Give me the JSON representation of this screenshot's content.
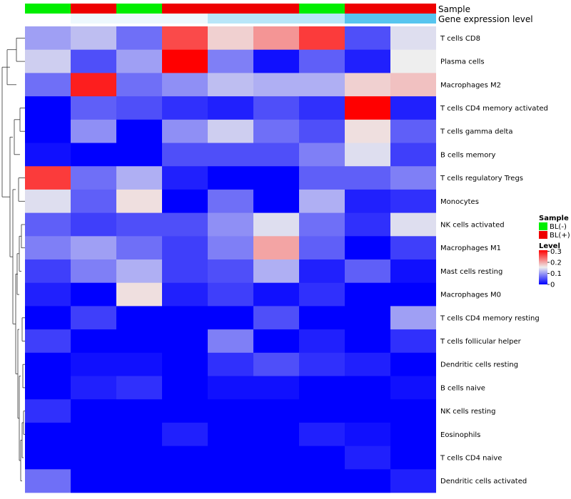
{
  "chart_data": {
    "type": "heatmap",
    "row_labels": [
      "T cells CD8",
      "Plasma cells",
      "Macrophages M2",
      "T cells CD4 memory activated",
      "T cells gamma delta",
      "B cells memory",
      "T cells regulatory  Tregs",
      "Monocytes",
      "NK cells activated",
      "Macrophages M1",
      "Mast cells resting",
      "Macrophages M0",
      "T cells CD4 memory resting",
      "T cells follicular helper",
      "Dendritic cells resting",
      "B cells naive",
      "NK cells resting",
      "Eosinophils",
      "T cells CD4 naive",
      "Dendritic cells activated"
    ],
    "column_count": 9,
    "values": [
      [
        0.1,
        0.12,
        0.07,
        0.26,
        0.17,
        0.21,
        0.27,
        0.05,
        0.14
      ],
      [
        0.13,
        0.05,
        0.1,
        0.31,
        0.08,
        0.01,
        0.06,
        0.02,
        0.15
      ],
      [
        0.07,
        0.29,
        0.07,
        0.09,
        0.12,
        0.11,
        0.11,
        0.17,
        0.18
      ],
      [
        0.0,
        0.06,
        0.05,
        0.03,
        0.02,
        0.05,
        0.03,
        0.31,
        0.02
      ],
      [
        0.0,
        0.09,
        0.0,
        0.09,
        0.13,
        0.07,
        0.05,
        0.16,
        0.06
      ],
      [
        0.01,
        0.0,
        0.0,
        0.05,
        0.05,
        0.05,
        0.08,
        0.14,
        0.04
      ],
      [
        0.27,
        0.07,
        0.11,
        0.02,
        0.0,
        0.0,
        0.06,
        0.06,
        0.08
      ],
      [
        0.14,
        0.06,
        0.16,
        0.0,
        0.07,
        0.0,
        0.11,
        0.02,
        0.03
      ],
      [
        0.06,
        0.04,
        0.05,
        0.05,
        0.09,
        0.14,
        0.07,
        0.03,
        0.14
      ],
      [
        0.08,
        0.1,
        0.07,
        0.04,
        0.08,
        0.2,
        0.06,
        0.0,
        0.04
      ],
      [
        0.04,
        0.08,
        0.11,
        0.04,
        0.05,
        0.11,
        0.02,
        0.06,
        0.01
      ],
      [
        0.02,
        0.0,
        0.16,
        0.02,
        0.04,
        0.01,
        0.03,
        0.0,
        0.0
      ],
      [
        0.0,
        0.04,
        0.0,
        0.0,
        0.0,
        0.05,
        0.0,
        0.0,
        0.1
      ],
      [
        0.04,
        0.0,
        0.0,
        0.0,
        0.08,
        0.0,
        0.02,
        0.0,
        0.03
      ],
      [
        0.0,
        0.01,
        0.01,
        0.0,
        0.03,
        0.05,
        0.03,
        0.02,
        0.0
      ],
      [
        0.0,
        0.02,
        0.03,
        0.0,
        0.01,
        0.01,
        0.0,
        0.0,
        0.01
      ],
      [
        0.03,
        0.0,
        0.0,
        0.0,
        0.0,
        0.0,
        0.0,
        0.0,
        0.0
      ],
      [
        0.0,
        0.0,
        0.0,
        0.02,
        0.0,
        0.0,
        0.02,
        0.01,
        0.0
      ],
      [
        0.0,
        0.0,
        0.0,
        0.0,
        0.0,
        0.0,
        0.0,
        0.02,
        0.0
      ],
      [
        0.07,
        0.0,
        0.0,
        0.0,
        0.0,
        0.0,
        0.0,
        0.0,
        0.02
      ]
    ],
    "color_scale": {
      "min": 0,
      "mid": 0.15,
      "max": 0.31,
      "low": "#0000ff",
      "midColor": "#eeeeee",
      "high": "#ff0000"
    },
    "annotations": {
      "sample_label": "Sample",
      "sample": [
        "BL(-)",
        "BL(+)",
        "BL(-)",
        "BL(+)",
        "BL(+)",
        "BL(+)",
        "BL(-)",
        "BL(+)",
        "BL(+)"
      ],
      "sample_colors": {
        "BL(-)": "#00ee00",
        "BL(+)": "#ee0000"
      },
      "expression_label": "Gene expression level",
      "expression_shades": [
        "#ffffff",
        "#eef8fd",
        "#eef8fd",
        "#eef8fd",
        "#b8e6f8",
        "#b8e6f8",
        "#b8e6f8",
        "#57c5ef",
        "#57c5ef"
      ]
    },
    "legend": {
      "sample_title": "Sample",
      "sample_items": [
        {
          "label": "BL(-)",
          "color": "#00ee00"
        },
        {
          "label": "BL(+)",
          "color": "#ee0000"
        }
      ],
      "level_title": "Level",
      "level_ticks": [
        0.3,
        0.2,
        0.1,
        0
      ],
      "level_tick_labels": [
        "0.3",
        "0.2",
        "0.1",
        "0"
      ]
    },
    "row_dendrogram": true,
    "grid": false
  }
}
